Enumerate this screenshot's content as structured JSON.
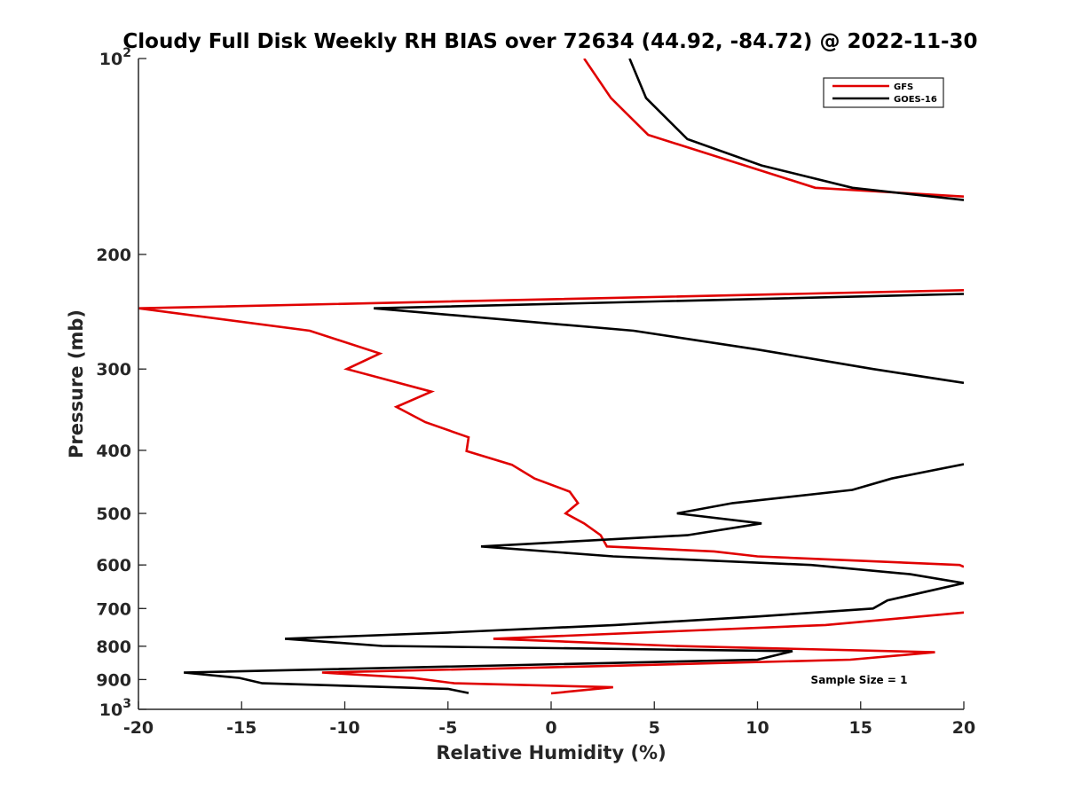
{
  "chart_data": {
    "type": "line",
    "title": "Cloudy Full Disk Weekly RH BIAS over 72634 (44.92, -84.72) @ 2022-11-30",
    "xlabel": "Relative Humidity (%)",
    "ylabel": "Pressure (mb)",
    "xlim": [
      -20,
      20
    ],
    "ylim": [
      100,
      1000
    ],
    "y_scale": "log",
    "y_reversed": true,
    "x_ticks": [
      "-20",
      "-15",
      "-10",
      "-5",
      "0",
      "5",
      "10",
      "15",
      "20"
    ],
    "y_tick_labels": [
      {
        "value": 100,
        "base": "10",
        "exp": "2"
      },
      {
        "value": 200,
        "label": "200"
      },
      {
        "value": 300,
        "label": "300"
      },
      {
        "value": 400,
        "label": "400"
      },
      {
        "value": 500,
        "label": "500"
      },
      {
        "value": 600,
        "label": "600"
      },
      {
        "value": 700,
        "label": "700"
      },
      {
        "value": 800,
        "label": "800"
      },
      {
        "value": 900,
        "label": "900"
      },
      {
        "value": 1000,
        "base": "10",
        "exp": "3"
      }
    ],
    "grid": false,
    "legend_position": "top-right",
    "annotation": "Sample Size = 1",
    "series": [
      {
        "name": "GFS",
        "color": "#e00000",
        "segments": [
          [
            [
              1.6,
              100
            ],
            [
              2.9,
              115
            ],
            [
              4.7,
              131
            ],
            [
              12.8,
              158
            ],
            [
              20,
              163
            ]
          ],
          [
            [
              20,
              227
            ],
            [
              -20,
              242
            ],
            [
              -11.7,
              262
            ],
            [
              -8.3,
              284
            ],
            [
              -9.9,
              300
            ],
            [
              -5.8,
              325
            ],
            [
              -7.5,
              343
            ],
            [
              -6.1,
              362
            ],
            [
              -4.0,
              382
            ],
            [
              -4.1,
              401
            ],
            [
              -1.9,
              421
            ],
            [
              -0.8,
              442
            ],
            [
              0.9,
              463
            ],
            [
              1.3,
              482
            ],
            [
              0.7,
              500
            ],
            [
              1.6,
              518
            ],
            [
              2.4,
              540
            ],
            [
              2.7,
              562
            ],
            [
              7.9,
              572
            ],
            [
              10.0,
              582
            ],
            [
              19.8,
              600
            ],
            [
              20,
              604
            ]
          ],
          [
            [
              20,
              710
            ],
            [
              13.3,
              742
            ],
            [
              -2.8,
              779
            ],
            [
              6.0,
              799
            ],
            [
              18.6,
              817
            ],
            [
              14.5,
              839
            ],
            [
              2.5,
              858
            ],
            [
              -11.1,
              878
            ],
            [
              -6.7,
              895
            ],
            [
              -4.7,
              912
            ],
            [
              3.0,
              925
            ],
            [
              0,
              945
            ]
          ]
        ]
      },
      {
        "name": "GOES-16",
        "color": "#000000",
        "segments": [
          [
            [
              3.8,
              100
            ],
            [
              4.6,
              115
            ],
            [
              6.6,
              133
            ],
            [
              10.2,
              146
            ],
            [
              14.6,
              158
            ],
            [
              20,
              165
            ]
          ],
          [
            [
              20,
              230
            ],
            [
              -8.6,
              242
            ],
            [
              4.0,
              262
            ],
            [
              10.0,
              280
            ],
            [
              15.6,
              300
            ],
            [
              20,
              315
            ]
          ],
          [
            [
              20,
              420
            ],
            [
              16.5,
              442
            ],
            [
              14.6,
              460
            ],
            [
              8.8,
              482
            ],
            [
              6.1,
              500
            ],
            [
              10.2,
              518
            ],
            [
              6.6,
              540
            ],
            [
              -3.4,
              562
            ],
            [
              3.0,
              582
            ],
            [
              12.6,
              600
            ],
            [
              17.4,
              620
            ],
            [
              20,
              640
            ],
            [
              16.3,
              680
            ],
            [
              15.6,
              700
            ],
            [
              10.0,
              720
            ],
            [
              3.1,
              742
            ],
            [
              -5.0,
              762
            ],
            [
              -12.9,
              779
            ],
            [
              -8.2,
              799
            ],
            [
              11.7,
              814
            ],
            [
              10.0,
              839
            ],
            [
              -17.8,
              878
            ],
            [
              -15.1,
              895
            ],
            [
              -14.0,
              912
            ],
            [
              -5.0,
              930
            ],
            [
              -4.0,
              944
            ]
          ]
        ]
      }
    ]
  }
}
